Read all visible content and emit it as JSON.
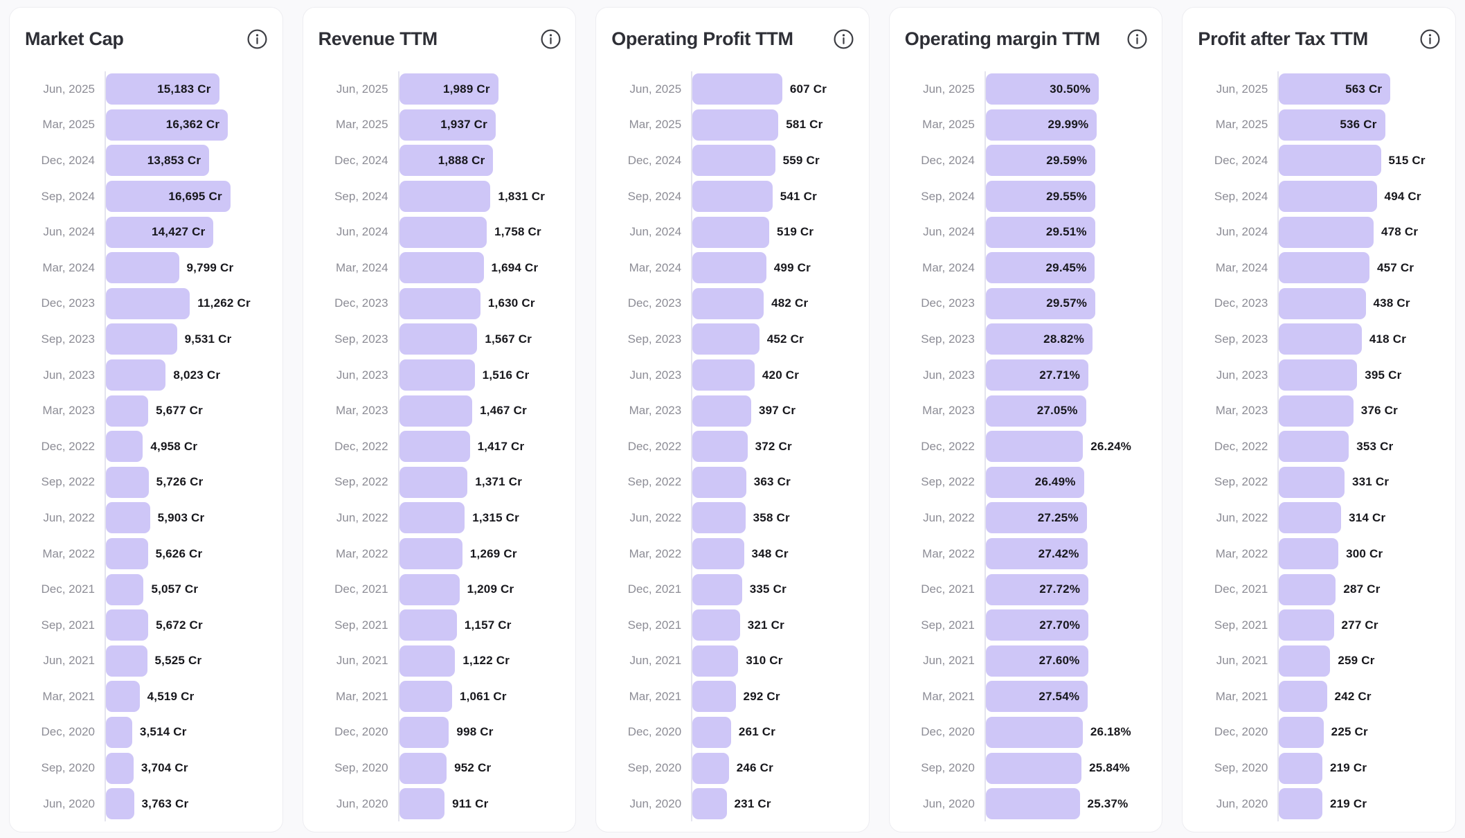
{
  "dates": [
    "Jun, 2025",
    "Mar, 2025",
    "Dec, 2024",
    "Sep, 2024",
    "Jun, 2024",
    "Mar, 2024",
    "Dec, 2023",
    "Sep, 2023",
    "Jun, 2023",
    "Mar, 2023",
    "Dec, 2022",
    "Sep, 2022",
    "Jun, 2022",
    "Mar, 2022",
    "Dec, 2021",
    "Sep, 2021",
    "Jun, 2021",
    "Mar, 2021",
    "Dec, 2020",
    "Sep, 2020",
    "Jun, 2020"
  ],
  "icons": {
    "info": "info-icon"
  },
  "colors": {
    "bar_fill": "#cec6f7",
    "value_text": "#17171c",
    "date_text": "#8c8c95",
    "title_text": "#2e2f36",
    "axis_line": "#e4e4ee",
    "card_background": "#ffffff",
    "card_border": "#ededf1",
    "page_background": "#f9f9fb"
  },
  "chart_data": [
    {
      "type": "bar",
      "orientation": "horizontal",
      "title": "Market Cap",
      "unit": "Cr",
      "legend": "none",
      "grid": "off",
      "xlim": [
        0,
        16695
      ],
      "categories": [
        "Jun, 2025",
        "Mar, 2025",
        "Dec, 2024",
        "Sep, 2024",
        "Jun, 2024",
        "Mar, 2024",
        "Dec, 2023",
        "Sep, 2023",
        "Jun, 2023",
        "Mar, 2023",
        "Dec, 2022",
        "Sep, 2022",
        "Jun, 2022",
        "Mar, 2022",
        "Dec, 2021",
        "Sep, 2021",
        "Jun, 2021",
        "Mar, 2021",
        "Dec, 2020",
        "Sep, 2020",
        "Jun, 2020"
      ],
      "values": [
        15183,
        16362,
        13853,
        16695,
        14427,
        9799,
        11262,
        9531,
        8023,
        5677,
        4958,
        5726,
        5903,
        5626,
        5057,
        5672,
        5525,
        4519,
        3514,
        3704,
        3763
      ],
      "labels": [
        "15,183 Cr",
        "16,362 Cr",
        "13,853 Cr",
        "16,695 Cr",
        "14,427 Cr",
        "9,799 Cr",
        "11,262 Cr",
        "9,531 Cr",
        "8,023 Cr",
        "5,677 Cr",
        "4,958 Cr",
        "5,726 Cr",
        "5,903 Cr",
        "5,626 Cr",
        "5,057 Cr",
        "5,672 Cr",
        "5,525 Cr",
        "4,519 Cr",
        "3,514 Cr",
        "3,704 Cr",
        "3,763 Cr"
      ],
      "label_inside": [
        true,
        true,
        true,
        true,
        true,
        false,
        false,
        false,
        false,
        false,
        false,
        false,
        false,
        false,
        false,
        false,
        false,
        false,
        false,
        false,
        false
      ],
      "layout": {
        "bar_area_frac": 0.76
      }
    },
    {
      "type": "bar",
      "orientation": "horizontal",
      "title": "Revenue TTM",
      "unit": "Cr",
      "legend": "none",
      "grid": "off",
      "xlim": [
        0,
        1989
      ],
      "categories": [
        "Jun, 2025",
        "Mar, 2025",
        "Dec, 2024",
        "Sep, 2024",
        "Jun, 2024",
        "Mar, 2024",
        "Dec, 2023",
        "Sep, 2023",
        "Jun, 2023",
        "Mar, 2023",
        "Dec, 2022",
        "Sep, 2022",
        "Jun, 2022",
        "Mar, 2022",
        "Dec, 2021",
        "Sep, 2021",
        "Jun, 2021",
        "Mar, 2021",
        "Dec, 2020",
        "Sep, 2020",
        "Jun, 2020"
      ],
      "values": [
        1989,
        1937,
        1888,
        1831,
        1758,
        1694,
        1630,
        1567,
        1516,
        1467,
        1417,
        1371,
        1315,
        1269,
        1209,
        1157,
        1122,
        1061,
        998,
        952,
        911
      ],
      "labels": [
        "1,989 Cr",
        "1,937 Cr",
        "1,888 Cr",
        "1,831 Cr",
        "1,758 Cr",
        "1,694 Cr",
        "1,630 Cr",
        "1,567 Cr",
        "1,516 Cr",
        "1,467 Cr",
        "1,417 Cr",
        "1,371 Cr",
        "1,315 Cr",
        "1,269 Cr",
        "1,209 Cr",
        "1,157 Cr",
        "1,122 Cr",
        "1,061 Cr",
        "998 Cr",
        "952 Cr",
        "911 Cr"
      ],
      "label_inside": [
        true,
        true,
        true,
        false,
        false,
        false,
        false,
        false,
        false,
        false,
        false,
        false,
        false,
        false,
        false,
        false,
        false,
        false,
        false,
        false,
        false
      ],
      "layout": {
        "bar_area_frac": 0.605
      }
    },
    {
      "type": "bar",
      "orientation": "horizontal",
      "title": "Operating Profit TTM",
      "unit": "Cr",
      "legend": "none",
      "grid": "off",
      "xlim": [
        0,
        607
      ],
      "categories": [
        "Jun, 2025",
        "Mar, 2025",
        "Dec, 2024",
        "Sep, 2024",
        "Jun, 2024",
        "Mar, 2024",
        "Dec, 2023",
        "Sep, 2023",
        "Jun, 2023",
        "Mar, 2023",
        "Dec, 2022",
        "Sep, 2022",
        "Jun, 2022",
        "Mar, 2022",
        "Dec, 2021",
        "Sep, 2021",
        "Jun, 2021",
        "Mar, 2021",
        "Dec, 2020",
        "Sep, 2020",
        "Jun, 2020"
      ],
      "values": [
        607,
        581,
        559,
        541,
        519,
        499,
        482,
        452,
        420,
        397,
        372,
        363,
        358,
        348,
        335,
        321,
        310,
        292,
        261,
        246,
        231
      ],
      "labels": [
        "607 Cr",
        "581 Cr",
        "559 Cr",
        "541 Cr",
        "519 Cr",
        "499 Cr",
        "482 Cr",
        "452 Cr",
        "420 Cr",
        "397 Cr",
        "372 Cr",
        "363 Cr",
        "358 Cr",
        "348 Cr",
        "335 Cr",
        "321 Cr",
        "310 Cr",
        "292 Cr",
        "261 Cr",
        "246 Cr",
        "231 Cr"
      ],
      "label_inside": [
        false,
        false,
        false,
        false,
        false,
        false,
        false,
        false,
        false,
        false,
        false,
        false,
        false,
        false,
        false,
        false,
        false,
        false,
        false,
        false,
        false
      ],
      "layout": {
        "bar_area_frac": 0.548
      }
    },
    {
      "type": "bar",
      "orientation": "horizontal",
      "title": "Operating margin TTM",
      "unit": "%",
      "legend": "none",
      "grid": "off",
      "xlim": [
        0,
        30.5
      ],
      "categories": [
        "Jun, 2025",
        "Mar, 2025",
        "Dec, 2024",
        "Sep, 2024",
        "Jun, 2024",
        "Mar, 2024",
        "Dec, 2023",
        "Sep, 2023",
        "Jun, 2023",
        "Mar, 2023",
        "Dec, 2022",
        "Sep, 2022",
        "Jun, 2022",
        "Mar, 2022",
        "Dec, 2021",
        "Sep, 2021",
        "Jun, 2021",
        "Mar, 2021",
        "Dec, 2020",
        "Sep, 2020",
        "Jun, 2020"
      ],
      "values": [
        30.5,
        29.99,
        29.59,
        29.55,
        29.51,
        29.45,
        29.57,
        28.82,
        27.71,
        27.05,
        26.24,
        26.49,
        27.25,
        27.42,
        27.72,
        27.7,
        27.6,
        27.54,
        26.18,
        25.84,
        25.37
      ],
      "labels": [
        "30.50%",
        "29.99%",
        "29.59%",
        "29.55%",
        "29.51%",
        "29.45%",
        "29.57%",
        "28.82%",
        "27.71%",
        "27.05%",
        "26.24%",
        "26.49%",
        "27.25%",
        "27.42%",
        "27.72%",
        "27.70%",
        "27.60%",
        "27.54%",
        "26.18%",
        "25.84%",
        "25.37%"
      ],
      "label_inside": [
        true,
        true,
        true,
        true,
        true,
        true,
        true,
        true,
        true,
        true,
        false,
        true,
        true,
        true,
        true,
        true,
        true,
        true,
        false,
        false,
        false
      ],
      "layout": {
        "bar_area_frac": 0.69
      }
    },
    {
      "type": "bar",
      "orientation": "horizontal",
      "title": "Profit after Tax TTM",
      "unit": "Cr",
      "legend": "none",
      "grid": "off",
      "xlim": [
        0,
        563
      ],
      "categories": [
        "Jun, 2025",
        "Mar, 2025",
        "Dec, 2024",
        "Sep, 2024",
        "Jun, 2024",
        "Mar, 2024",
        "Dec, 2023",
        "Sep, 2023",
        "Jun, 2023",
        "Mar, 2023",
        "Dec, 2022",
        "Sep, 2022",
        "Jun, 2022",
        "Mar, 2022",
        "Dec, 2021",
        "Sep, 2021",
        "Jun, 2021",
        "Mar, 2021",
        "Dec, 2020",
        "Sep, 2020",
        "Jun, 2020"
      ],
      "values": [
        563,
        536,
        515,
        494,
        478,
        457,
        438,
        418,
        395,
        376,
        353,
        331,
        314,
        300,
        287,
        277,
        259,
        242,
        225,
        219,
        219
      ],
      "labels": [
        "563 Cr",
        "536 Cr",
        "515 Cr",
        "494 Cr",
        "478 Cr",
        "457 Cr",
        "438 Cr",
        "418 Cr",
        "395 Cr",
        "376 Cr",
        "353 Cr",
        "331 Cr",
        "314 Cr",
        "300 Cr",
        "287 Cr",
        "277 Cr",
        "259 Cr",
        "242 Cr",
        "225 Cr",
        "219 Cr",
        "219 Cr"
      ],
      "label_inside": [
        true,
        true,
        false,
        false,
        false,
        false,
        false,
        false,
        false,
        false,
        false,
        false,
        false,
        false,
        false,
        false,
        false,
        false,
        false,
        false,
        false
      ],
      "layout": {
        "bar_area_frac": 0.68
      }
    }
  ]
}
